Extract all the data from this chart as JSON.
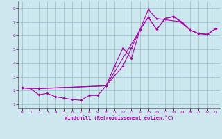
{
  "xlabel": "Windchill (Refroidissement éolien,°C)",
  "bg_color": "#cce8ee",
  "line_color": "#aa00aa",
  "grid_color": "#99bbcc",
  "xlim": [
    -0.5,
    23.5
  ],
  "ylim": [
    0.7,
    8.5
  ],
  "xticks": [
    0,
    1,
    2,
    3,
    4,
    5,
    6,
    7,
    8,
    9,
    10,
    11,
    12,
    13,
    14,
    15,
    16,
    17,
    18,
    19,
    20,
    21,
    22,
    23
  ],
  "yticks": [
    1,
    2,
    3,
    4,
    5,
    6,
    7,
    8
  ],
  "line1_x": [
    0,
    1,
    2,
    3,
    4,
    5,
    6,
    7,
    8,
    9,
    10,
    11,
    12,
    13,
    14,
    15,
    16,
    17,
    18,
    19,
    20,
    21,
    22,
    23
  ],
  "line1_y": [
    2.2,
    2.15,
    1.7,
    1.8,
    1.55,
    1.45,
    1.35,
    1.3,
    1.65,
    1.65,
    2.35,
    3.8,
    5.1,
    4.35,
    6.4,
    7.35,
    6.45,
    7.25,
    7.4,
    7.0,
    6.4,
    6.15,
    6.1,
    6.5
  ],
  "line2_x": [
    0,
    2,
    10,
    12,
    13,
    14,
    15,
    16,
    17,
    18,
    20,
    21,
    22,
    23
  ],
  "line2_y": [
    2.2,
    2.15,
    2.35,
    3.8,
    5.1,
    6.4,
    7.35,
    6.45,
    7.25,
    7.4,
    6.4,
    6.15,
    6.1,
    6.5
  ],
  "line3_x": [
    0,
    2,
    10,
    14,
    15,
    16,
    19,
    20,
    21,
    22,
    23
  ],
  "line3_y": [
    2.2,
    2.15,
    2.35,
    6.4,
    7.9,
    7.25,
    7.0,
    6.4,
    6.15,
    6.1,
    6.5
  ]
}
